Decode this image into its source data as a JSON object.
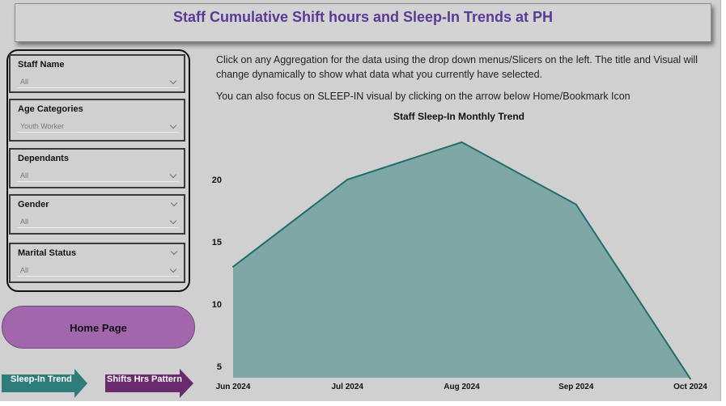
{
  "header": {
    "title": "Staff Cumulative Shift hours and Sleep-In Trends at PH"
  },
  "slicers": [
    {
      "label": "Staff Name",
      "value": "All"
    },
    {
      "label": "Age Categories",
      "value": "Youth Worker"
    },
    {
      "label": "Dependants",
      "value": "All"
    },
    {
      "label": "Gender",
      "value": "All"
    },
    {
      "label": "Marital Status",
      "value": "All"
    }
  ],
  "nav": {
    "home_label": "Home Page",
    "sleep_in_label": "Sleep-In Trend",
    "shifts_label": "Shifts Hrs Pattern"
  },
  "instructions": {
    "line1": "Click on any Aggregation for the data using the drop down menus/Slicers on the left. The title and Visual will change dynamically to show what data what you currently have selected.",
    "line2": "You can also focus on SLEEP-IN  visual by clicking on the arrow below Home/Bookmark Icon"
  },
  "colors": {
    "title": "#5b3a97",
    "area_fill": "#7fa7a6",
    "area_line": "#1f6e6c",
    "home_button": "#a166ac",
    "sleep_in_arrow": "#2e7d7a",
    "shifts_arrow": "#6a2a6e"
  },
  "chart_data": {
    "type": "area",
    "title": "Staff Sleep-In Monthly Trend",
    "categories": [
      "Jun 2024",
      "Jul 2024",
      "Aug 2024",
      "Sep 2024",
      "Oct 2024"
    ],
    "values": [
      13,
      20,
      23,
      18,
      4
    ],
    "yticks": [
      5,
      10,
      15,
      20
    ],
    "ylim": [
      4,
      24
    ],
    "grid": false,
    "legend": "none"
  }
}
